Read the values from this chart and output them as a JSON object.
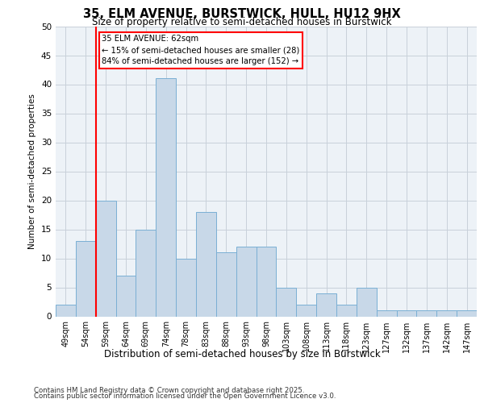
{
  "title1": "35, ELM AVENUE, BURSTWICK, HULL, HU12 9HX",
  "title2": "Size of property relative to semi-detached houses in Burstwick",
  "xlabel": "Distribution of semi-detached houses by size in Burstwick",
  "ylabel": "Number of semi-detached properties",
  "categories": [
    "49sqm",
    "54sqm",
    "59sqm",
    "64sqm",
    "69sqm",
    "74sqm",
    "78sqm",
    "83sqm",
    "88sqm",
    "93sqm",
    "98sqm",
    "103sqm",
    "108sqm",
    "113sqm",
    "118sqm",
    "123sqm",
    "127sqm",
    "132sqm",
    "137sqm",
    "142sqm",
    "147sqm"
  ],
  "values": [
    2,
    13,
    20,
    7,
    15,
    41,
    10,
    18,
    11,
    12,
    12,
    5,
    2,
    4,
    2,
    5,
    1,
    1,
    1,
    1,
    1
  ],
  "bar_color": "#c8d8e8",
  "bar_edge_color": "#7aafd4",
  "vline_index": 2,
  "vline_color": "red",
  "annotation_title": "35 ELM AVENUE: 62sqm",
  "annotation_line1": "← 15% of semi-detached houses are smaller (28)",
  "annotation_line2": "84% of semi-detached houses are larger (152) →",
  "ylim": [
    0,
    50
  ],
  "yticks": [
    0,
    5,
    10,
    15,
    20,
    25,
    30,
    35,
    40,
    45,
    50
  ],
  "footer1": "Contains HM Land Registry data © Crown copyright and database right 2025.",
  "footer2": "Contains public sector information licensed under the Open Government Licence v3.0.",
  "bg_color": "#edf2f7",
  "grid_color": "#c8d0da"
}
